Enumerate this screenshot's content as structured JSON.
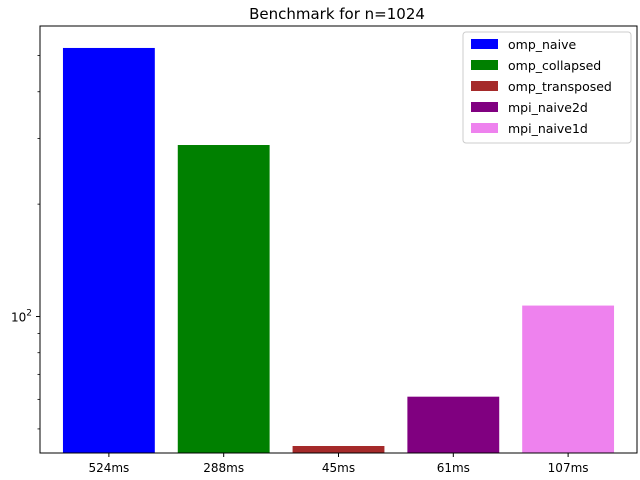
{
  "chart_data": {
    "type": "bar",
    "title": "Benchmark for n=1024",
    "xlabel": "",
    "ylabel": "",
    "yscale": "log",
    "ylim": [
      43.1,
      600
    ],
    "y_ticks": [
      {
        "value": 100,
        "base": "10",
        "exp": "2"
      }
    ],
    "y_minor_ticks": [
      50,
      60,
      70,
      80,
      90,
      200,
      300,
      400,
      500
    ],
    "categories": [
      "524ms",
      "288ms",
      "45ms",
      "61ms",
      "107ms"
    ],
    "values": [
      524,
      288,
      45,
      61,
      107
    ],
    "series": [
      {
        "name": "omp_naive",
        "color": "#0000ff"
      },
      {
        "name": "omp_collapsed",
        "color": "#008000"
      },
      {
        "name": "omp_transposed",
        "color": "#a52a2a"
      },
      {
        "name": "mpi_naive2d",
        "color": "#800080"
      },
      {
        "name": "mpi_naive1d",
        "color": "#ee82ee"
      }
    ],
    "legend_position": "top-right",
    "grid": false
  }
}
